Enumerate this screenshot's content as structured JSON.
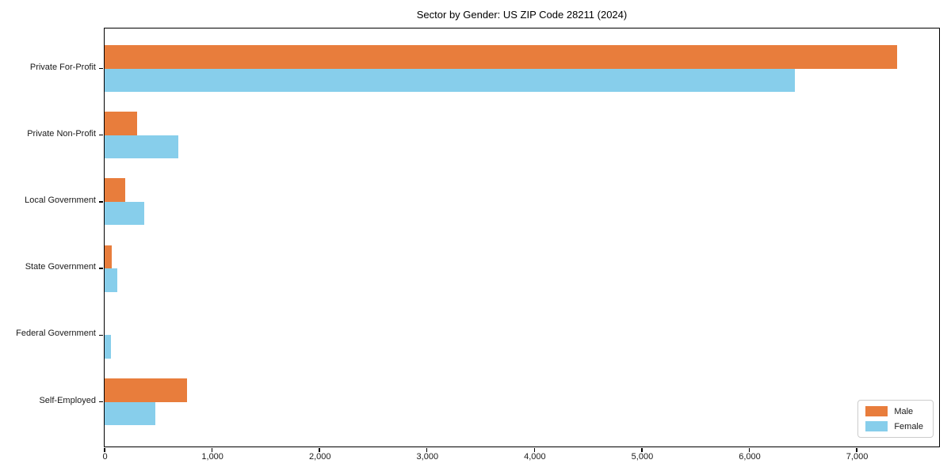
{
  "chart_data": {
    "type": "bar",
    "orientation": "horizontal",
    "title": "Sector by Gender: US ZIP Code 28211 (2024)",
    "categories": [
      "Private For-Profit",
      "Private Non-Profit",
      "Local Government",
      "State Government",
      "Federal Government",
      "Self-Employed"
    ],
    "series": [
      {
        "name": "Male",
        "color": "#E87D3C",
        "values": [
          7380,
          305,
          195,
          70,
          0,
          765
        ]
      },
      {
        "name": "Female",
        "color": "#87CEEB",
        "values": [
          6425,
          685,
          370,
          120,
          60,
          475
        ]
      }
    ],
    "xlim": [
      0,
      7760
    ],
    "x_ticks": [
      0,
      1000,
      2000,
      3000,
      4000,
      5000,
      6000,
      7000
    ],
    "x_tick_labels": [
      "0",
      "1,000",
      "2,000",
      "3,000",
      "4,000",
      "5,000",
      "6,000",
      "7,000"
    ],
    "xlabel": "",
    "ylabel": "",
    "grid": false,
    "legend_position": "lower right"
  },
  "colors": {
    "background": "#ffffff",
    "axis": "#000000",
    "text": "#1a1a1a",
    "legend_border": "#cccccc"
  }
}
